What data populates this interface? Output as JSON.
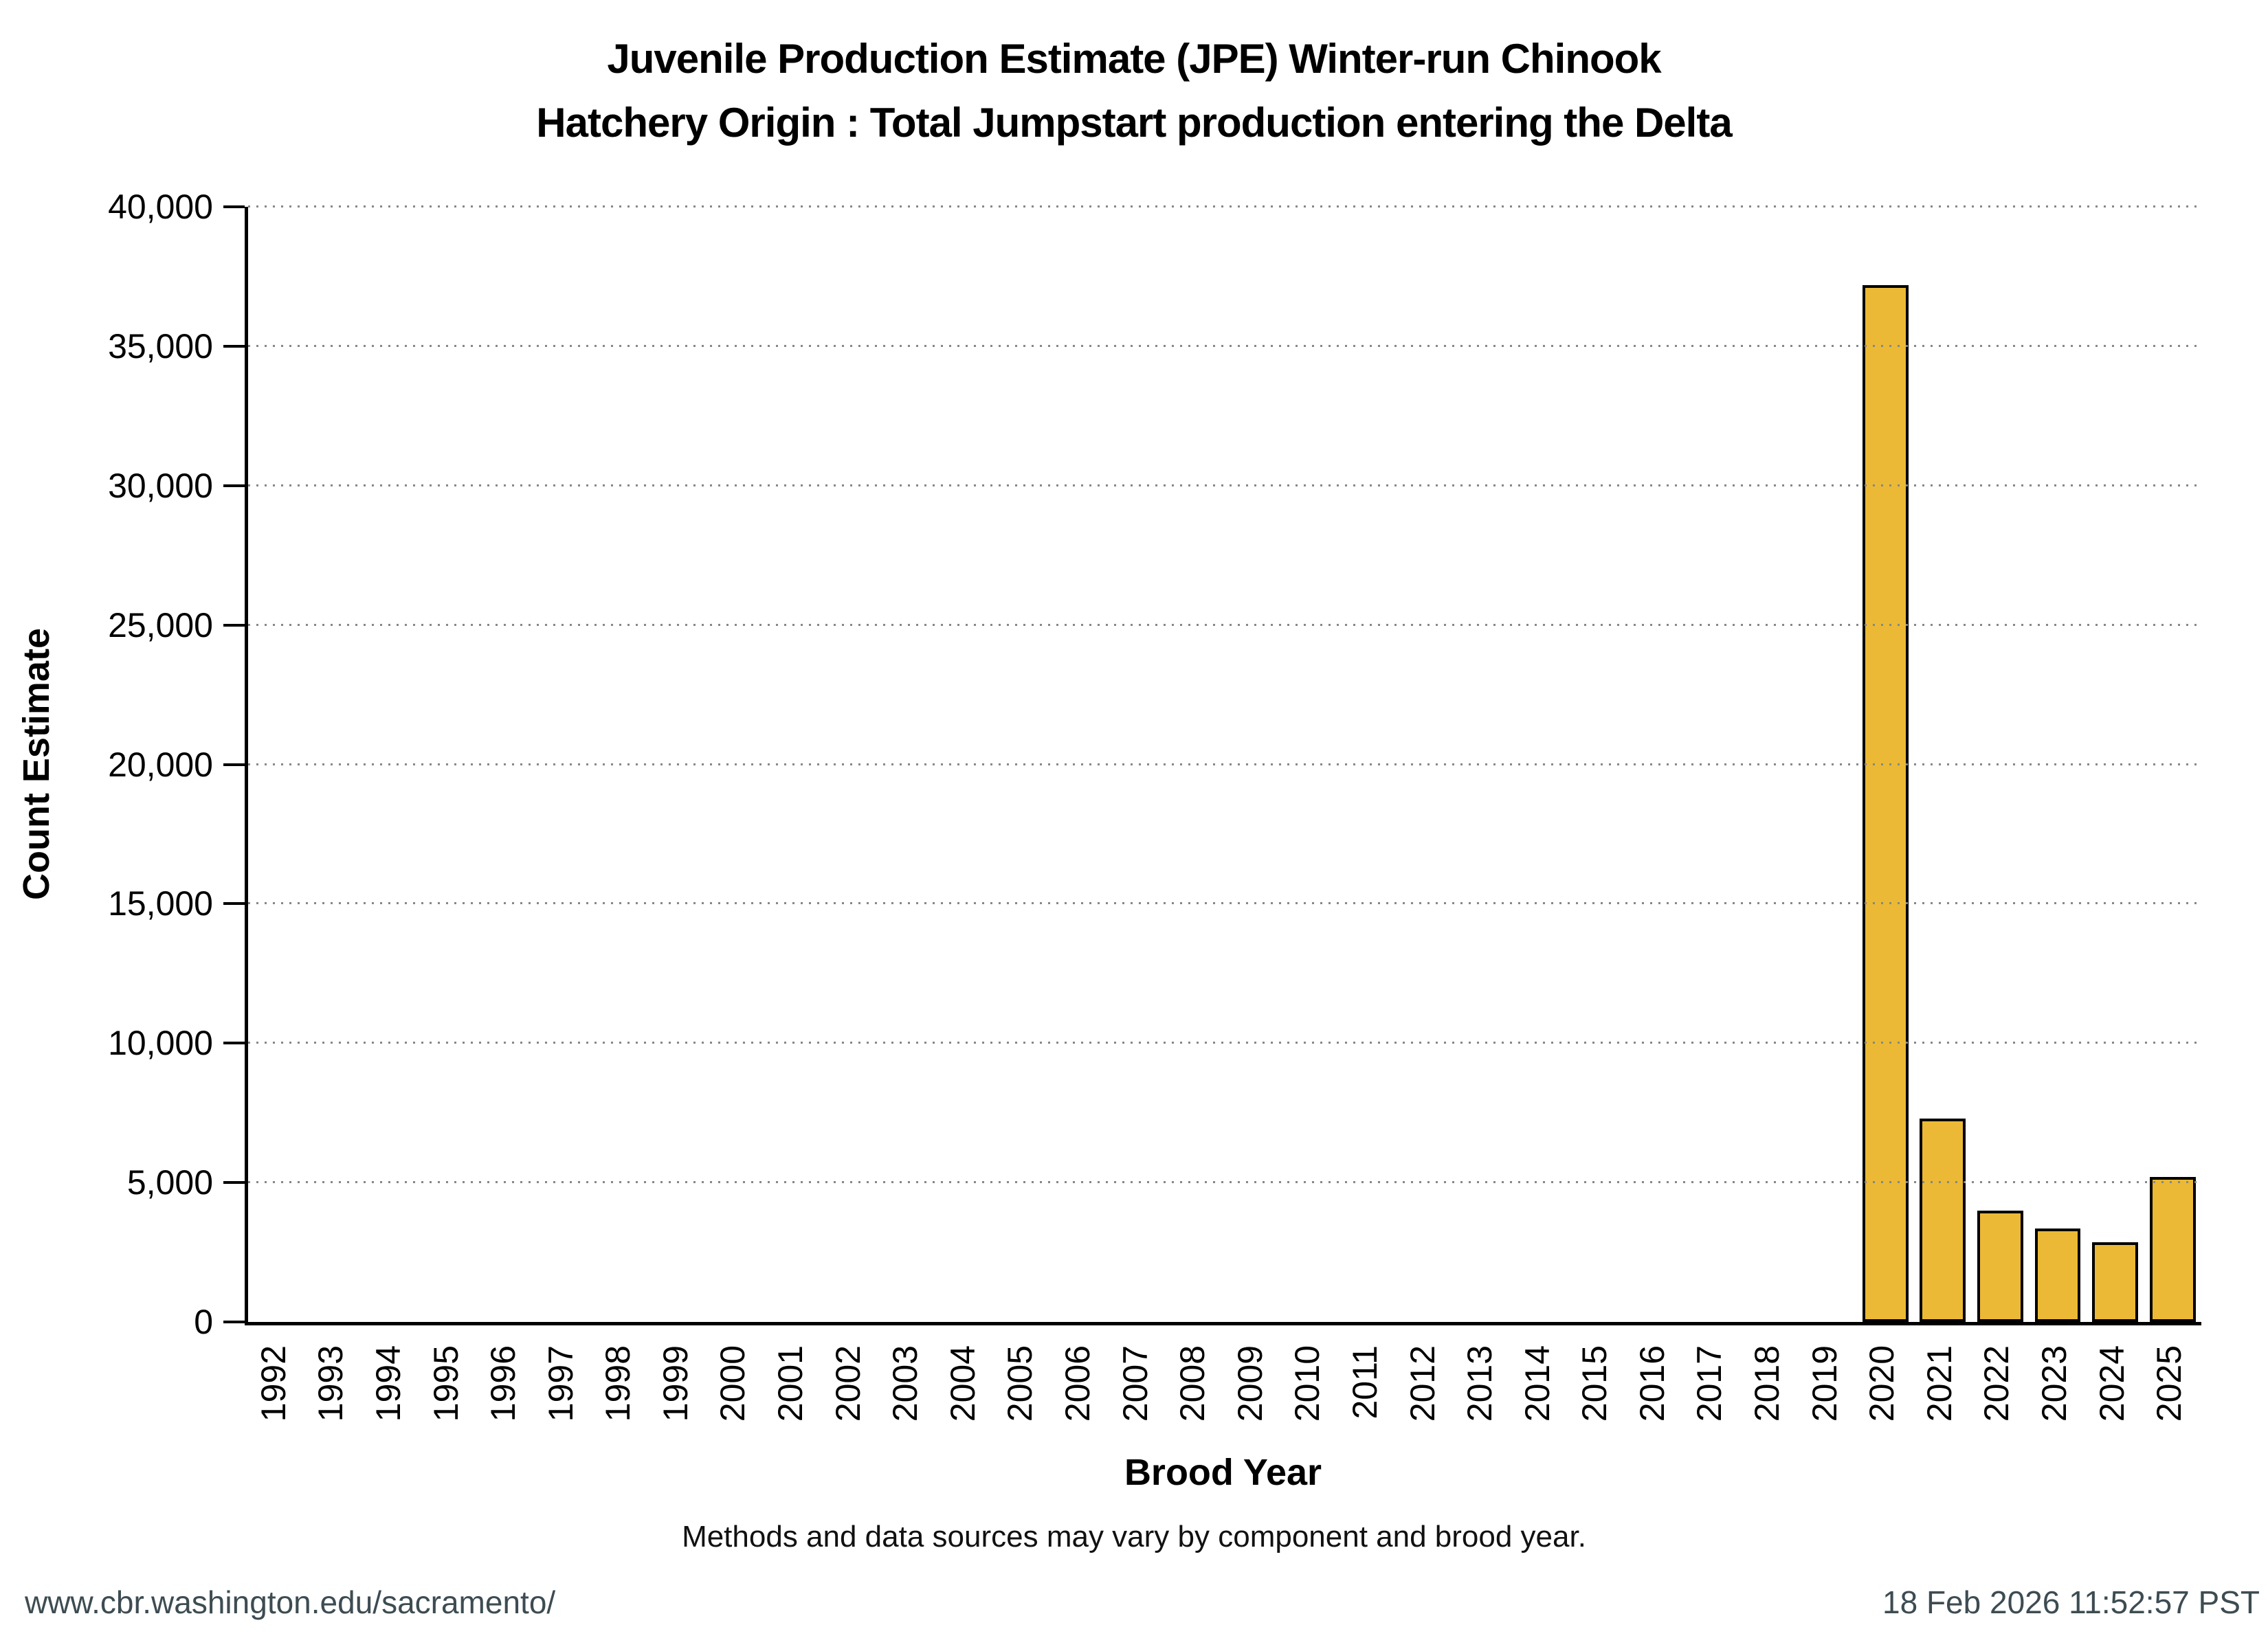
{
  "figure": {
    "title_line1": "Juvenile Production Estimate (JPE) Winter-run Chinook",
    "title_line2": "Hatchery Origin : Total Jumpstart production entering the Delta",
    "footnote": "Methods and data sources may vary by component and brood year.",
    "footer_url": "www.cbr.washington.edu/sacramento/",
    "footer_timestamp": "18 Feb 2026 11:52:57 PST"
  },
  "chart_data": {
    "type": "bar",
    "title": "Juvenile Production Estimate (JPE) Winter-run Chinook — Hatchery Origin : Total Jumpstart production entering the Delta",
    "xlabel": "Brood Year",
    "ylabel": "Count Estimate",
    "ylim": [
      0,
      40000
    ],
    "ytick_step": 5000,
    "yticks": [
      0,
      5000,
      10000,
      15000,
      20000,
      25000,
      30000,
      35000,
      40000
    ],
    "ytick_labels": [
      "0",
      "5,000",
      "10,000",
      "15,000",
      "20,000",
      "25,000",
      "30,000",
      "35,000",
      "40,000"
    ],
    "grid": "horizontal-dotted",
    "legend_position": "none",
    "categories": [
      "1992",
      "1993",
      "1994",
      "1995",
      "1996",
      "1997",
      "1998",
      "1999",
      "2000",
      "2001",
      "2002",
      "2003",
      "2004",
      "2005",
      "2006",
      "2007",
      "2008",
      "2009",
      "2010",
      "2011",
      "2012",
      "2013",
      "2014",
      "2015",
      "2016",
      "2017",
      "2018",
      "2019",
      "2020",
      "2021",
      "2022",
      "2023",
      "2024",
      "2025"
    ],
    "values": [
      0,
      0,
      0,
      0,
      0,
      0,
      0,
      0,
      0,
      0,
      0,
      0,
      0,
      0,
      0,
      0,
      0,
      0,
      0,
      0,
      0,
      0,
      0,
      0,
      0,
      0,
      0,
      0,
      37200,
      7300,
      4000,
      3350,
      2850,
      5200
    ],
    "bar_fill": "#EBB935",
    "bar_stroke": "#000000"
  },
  "colors": {
    "background": "#FFFFFF",
    "text": "#000000",
    "footer_text": "#3D4C52",
    "gridline": "#878787"
  }
}
